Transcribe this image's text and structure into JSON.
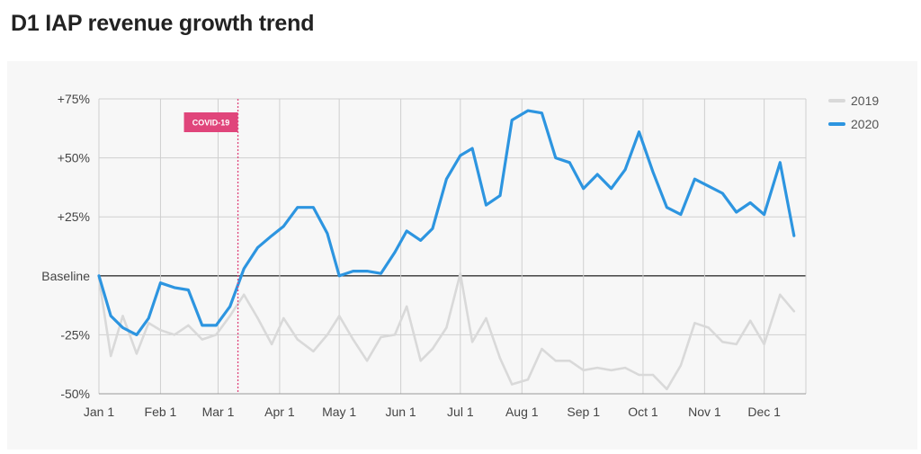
{
  "title": "D1 IAP revenue growth trend",
  "chart_data": {
    "type": "line",
    "title": "D1 IAP revenue growth trend",
    "xlabel": "",
    "ylabel": "",
    "y_unit": "%",
    "ylim": [
      -50,
      75
    ],
    "y_ticks": [
      {
        "value": 75,
        "label": "+75%"
      },
      {
        "value": 50,
        "label": "+50%"
      },
      {
        "value": 25,
        "label": "+25%"
      },
      {
        "value": 0,
        "label": "Baseline"
      },
      {
        "value": -25,
        "label": "-25%"
      },
      {
        "value": -50,
        "label": "-50%"
      }
    ],
    "xlim": [
      "2020-01-01",
      "2020-12-22"
    ],
    "x_ticks": [
      {
        "date": "2020-01-01",
        "label": "Jan 1"
      },
      {
        "date": "2020-02-01",
        "label": "Feb 1"
      },
      {
        "date": "2020-03-01",
        "label": "Mar 1"
      },
      {
        "date": "2020-04-01",
        "label": "Apr 1"
      },
      {
        "date": "2020-05-01",
        "label": "May 1"
      },
      {
        "date": "2020-06-01",
        "label": "Jun 1"
      },
      {
        "date": "2020-07-01",
        "label": "Jul 1"
      },
      {
        "date": "2020-08-01",
        "label": "Aug 1"
      },
      {
        "date": "2020-09-01",
        "label": "Sep 1"
      },
      {
        "date": "2020-10-01",
        "label": "Oct 1"
      },
      {
        "date": "2020-11-01",
        "label": "Nov 1"
      },
      {
        "date": "2020-12-01",
        "label": "Dec 1"
      }
    ],
    "grid": true,
    "legend_position": "top-right",
    "annotations": [
      {
        "text": "COVID-19",
        "date": "2020-03-11",
        "color": "#e0457b"
      }
    ],
    "series": [
      {
        "name": "2019",
        "color": "#d9d9d9",
        "points": [
          [
            "2020-01-01",
            -1
          ],
          [
            "2020-01-07",
            -34
          ],
          [
            "2020-01-13",
            -17
          ],
          [
            "2020-01-20",
            -33
          ],
          [
            "2020-01-26",
            -20
          ],
          [
            "2020-02-01",
            -23
          ],
          [
            "2020-02-08",
            -25
          ],
          [
            "2020-02-15",
            -21
          ],
          [
            "2020-02-22",
            -27
          ],
          [
            "2020-02-29",
            -25
          ],
          [
            "2020-03-07",
            -17
          ],
          [
            "2020-03-14",
            -8
          ],
          [
            "2020-03-21",
            -18
          ],
          [
            "2020-03-28",
            -29
          ],
          [
            "2020-04-03",
            -18
          ],
          [
            "2020-04-10",
            -27
          ],
          [
            "2020-04-18",
            -32
          ],
          [
            "2020-04-25",
            -25
          ],
          [
            "2020-05-01",
            -17
          ],
          [
            "2020-05-08",
            -27
          ],
          [
            "2020-05-15",
            -36
          ],
          [
            "2020-05-22",
            -26
          ],
          [
            "2020-05-29",
            -25
          ],
          [
            "2020-06-04",
            -13
          ],
          [
            "2020-06-11",
            -36
          ],
          [
            "2020-06-17",
            -31
          ],
          [
            "2020-06-24",
            -22
          ],
          [
            "2020-07-01",
            1
          ],
          [
            "2020-07-07",
            -28
          ],
          [
            "2020-07-14",
            -18
          ],
          [
            "2020-07-21",
            -35
          ],
          [
            "2020-07-27",
            -46
          ],
          [
            "2020-08-04",
            -44
          ],
          [
            "2020-08-11",
            -31
          ],
          [
            "2020-08-18",
            -36
          ],
          [
            "2020-08-25",
            -36
          ],
          [
            "2020-09-01",
            -40
          ],
          [
            "2020-09-08",
            -39
          ],
          [
            "2020-09-15",
            -40
          ],
          [
            "2020-09-22",
            -39
          ],
          [
            "2020-09-29",
            -42
          ],
          [
            "2020-10-06",
            -42
          ],
          [
            "2020-10-13",
            -48
          ],
          [
            "2020-10-20",
            -38
          ],
          [
            "2020-10-27",
            -20
          ],
          [
            "2020-11-03",
            -22
          ],
          [
            "2020-11-10",
            -28
          ],
          [
            "2020-11-17",
            -29
          ],
          [
            "2020-11-24",
            -19
          ],
          [
            "2020-12-01",
            -29
          ],
          [
            "2020-12-09",
            -8
          ],
          [
            "2020-12-16",
            -15
          ]
        ]
      },
      {
        "name": "2020",
        "color": "#2d95e0",
        "points": [
          [
            "2020-01-01",
            0
          ],
          [
            "2020-01-07",
            -17
          ],
          [
            "2020-01-13",
            -22
          ],
          [
            "2020-01-20",
            -25
          ],
          [
            "2020-01-26",
            -18
          ],
          [
            "2020-02-01",
            -3
          ],
          [
            "2020-02-08",
            -5
          ],
          [
            "2020-02-15",
            -6
          ],
          [
            "2020-02-22",
            -21
          ],
          [
            "2020-02-29",
            -21
          ],
          [
            "2020-03-07",
            -13
          ],
          [
            "2020-03-14",
            3
          ],
          [
            "2020-03-21",
            12
          ],
          [
            "2020-03-28",
            17
          ],
          [
            "2020-04-03",
            21
          ],
          [
            "2020-04-10",
            29
          ],
          [
            "2020-04-18",
            29
          ],
          [
            "2020-04-25",
            18
          ],
          [
            "2020-05-01",
            0
          ],
          [
            "2020-05-08",
            2
          ],
          [
            "2020-05-15",
            2
          ],
          [
            "2020-05-22",
            1
          ],
          [
            "2020-05-29",
            10
          ],
          [
            "2020-06-04",
            19
          ],
          [
            "2020-06-11",
            15
          ],
          [
            "2020-06-17",
            20
          ],
          [
            "2020-06-24",
            41
          ],
          [
            "2020-07-01",
            51
          ],
          [
            "2020-07-07",
            54
          ],
          [
            "2020-07-14",
            30
          ],
          [
            "2020-07-21",
            34
          ],
          [
            "2020-07-27",
            66
          ],
          [
            "2020-08-04",
            70
          ],
          [
            "2020-08-11",
            69
          ],
          [
            "2020-08-18",
            50
          ],
          [
            "2020-08-25",
            48
          ],
          [
            "2020-09-01",
            37
          ],
          [
            "2020-09-08",
            43
          ],
          [
            "2020-09-15",
            37
          ],
          [
            "2020-09-22",
            45
          ],
          [
            "2020-09-29",
            61
          ],
          [
            "2020-10-06",
            44
          ],
          [
            "2020-10-13",
            29
          ],
          [
            "2020-10-20",
            26
          ],
          [
            "2020-10-27",
            41
          ],
          [
            "2020-11-03",
            38
          ],
          [
            "2020-11-10",
            35
          ],
          [
            "2020-11-17",
            27
          ],
          [
            "2020-11-24",
            31
          ],
          [
            "2020-12-01",
            26
          ],
          [
            "2020-12-09",
            48
          ],
          [
            "2020-12-16",
            17
          ]
        ]
      }
    ]
  }
}
